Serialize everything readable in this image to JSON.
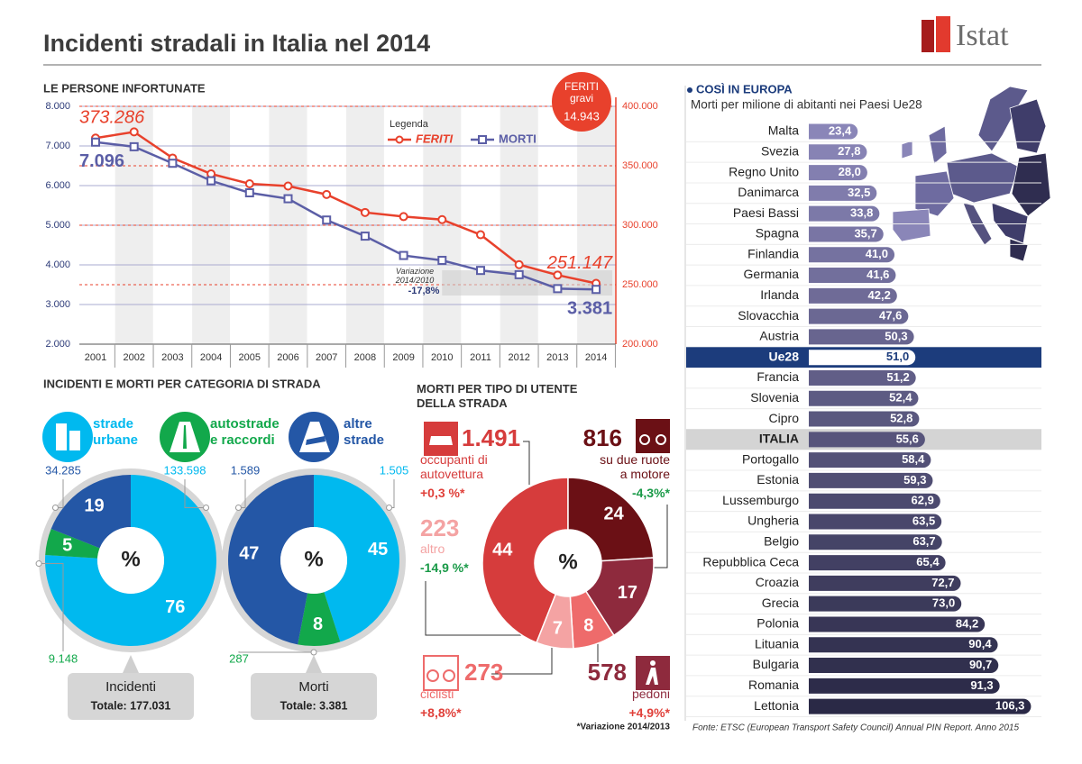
{
  "header": {
    "title": "Incidenti stradali in Italia nel 2014",
    "logo": "Istat"
  },
  "chart_data": [
    {
      "type": "line",
      "title": "LE PERSONE INFORTUNATE",
      "legend_title": "Legenda",
      "categories": [
        "2001",
        "2002",
        "2003",
        "2004",
        "2005",
        "2006",
        "2007",
        "2008",
        "2009",
        "2010",
        "2011",
        "2012",
        "2013",
        "2014"
      ],
      "series": [
        {
          "name": "FERITI",
          "color": "#e8412c",
          "axis": "y2",
          "values": [
            373286,
            378492,
            356475,
            343179,
            334858,
            332955,
            325850,
            310745,
            307258,
            304720,
            292019,
            266864,
            258093,
            251147
          ],
          "value_labels": [
            "373.286",
            null,
            null,
            null,
            null,
            null,
            null,
            null,
            null,
            null,
            null,
            null,
            null,
            "251.147"
          ]
        },
        {
          "name": "MORTI",
          "color": "#5b5ea6",
          "values": [
            7096,
            6980,
            6563,
            6122,
            5818,
            5669,
            5131,
            4725,
            4237,
            4114,
            3860,
            3753,
            3401,
            3381
          ],
          "value_labels": [
            "7.096",
            null,
            null,
            null,
            null,
            null,
            null,
            null,
            null,
            null,
            null,
            null,
            null,
            "3.381"
          ]
        }
      ],
      "ylim": [
        2000,
        8000
      ],
      "yticks": [
        {
          "value": 2000,
          "label": "2.000"
        },
        {
          "value": 3000,
          "label": "3.000"
        },
        {
          "value": 4000,
          "label": "4.000"
        },
        {
          "value": 5000,
          "label": "5.000"
        },
        {
          "value": 6000,
          "label": "6.000"
        },
        {
          "value": 7000,
          "label": "7.000"
        },
        {
          "value": 8000,
          "label": "8.000"
        }
      ],
      "y2lim": [
        200000,
        400000
      ],
      "y2ticks": [
        {
          "value": 200000,
          "label": "200.000"
        },
        {
          "value": 250000,
          "label": "250.000"
        },
        {
          "value": 300000,
          "label": "300.000"
        },
        {
          "value": 350000,
          "label": "350.000"
        },
        {
          "value": 400000,
          "label": "400.000"
        }
      ],
      "grid": true,
      "badge": {
        "label": "FERITI\ngravi",
        "value": "14.943"
      },
      "note": {
        "label": "Variazione\n2014/2010",
        "value": "-17,8%"
      }
    },
    {
      "type": "donut",
      "title": "INCIDENTI E MORTI PER CATEGORIA DI STRADA",
      "center_label": "%",
      "categories": [
        "strade\nurbane",
        "autostrade\ne raccordi",
        "altre\nstrade"
      ],
      "colors": [
        "#00b9ef",
        "#12a84b",
        "#2457a6"
      ],
      "series": [
        {
          "name": "Incidenti",
          "total": "Totale: 177.031",
          "values": [
            76,
            5,
            19
          ],
          "counts": [
            133598,
            9148,
            34285
          ],
          "count_labels": [
            "133.598",
            "9.148",
            "34.285"
          ]
        },
        {
          "name": "Morti",
          "total": "Totale: 3.381",
          "values": [
            45,
            8,
            47
          ],
          "counts": [
            1505,
            287,
            1589
          ],
          "count_labels": [
            "1.505",
            "287",
            "1.589"
          ]
        }
      ]
    },
    {
      "type": "donut",
      "title": "MORTI PER TIPO DI UTENTE\nDELLA STRADA",
      "center_label": "%",
      "categories": [
        "occupanti di\nautovettura",
        "su due ruote\na motore",
        "pedoni",
        "ciclisti",
        "altro"
      ],
      "colors": [
        "#d63c3c",
        "#6b1015",
        "#8e2a3d",
        "#ee6b6b",
        "#f4a3a3"
      ],
      "values": [
        44,
        24,
        17,
        8,
        7
      ],
      "counts": [
        1491,
        816,
        578,
        273,
        223
      ],
      "count_labels": [
        "1.491",
        "816",
        "578",
        "273",
        "223"
      ],
      "changes": [
        "+0,3 %*",
        "-4,3%*",
        "+4,9%*",
        "+8,8%*",
        "-14,9 %*"
      ],
      "footnote": "*Variazione 2014/2013"
    },
    {
      "type": "hbar",
      "title": "COSÌ IN EUROPA",
      "subtitle": "Morti per milione di abitanti nei Paesi Ue28",
      "categories": [
        "Malta",
        "Svezia",
        "Regno Unito",
        "Danimarca",
        "Paesi Bassi",
        "Spagna",
        "Finlandia",
        "Germania",
        "Irlanda",
        "Slovacchia",
        "Austria",
        "Ue28",
        "Francia",
        "Slovenia",
        "Cipro",
        "ITALIA",
        "Portogallo",
        "Estonia",
        "Lussemburgo",
        "Ungheria",
        "Belgio",
        "Repubblica Ceca",
        "Croazia",
        "Grecia",
        "Polonia",
        "Lituania",
        "Bulgaria",
        "Romania",
        "Lettonia"
      ],
      "values": [
        23.4,
        27.8,
        28.0,
        32.5,
        33.8,
        35.7,
        41.0,
        41.6,
        42.2,
        47.6,
        50.3,
        51.0,
        51.2,
        52.4,
        52.8,
        55.6,
        58.4,
        59.3,
        62.9,
        63.5,
        63.7,
        65.4,
        72.7,
        73.0,
        84.2,
        90.4,
        90.7,
        91.3,
        106.3
      ],
      "value_labels": [
        "23,4",
        "27,8",
        "28,0",
        "32,5",
        "33,8",
        "35,7",
        "41,0",
        "41,6",
        "42,2",
        "47,6",
        "50,3",
        "51,0",
        "51,2",
        "52,4",
        "52,8",
        "55,6",
        "58,4",
        "59,3",
        "62,9",
        "63,5",
        "63,7",
        "65,4",
        "72,7",
        "73,0",
        "84,2",
        "90,4",
        "90,7",
        "91,3",
        "106,3"
      ],
      "xlim": [
        0,
        110
      ],
      "color_range": [
        "#8a86b8",
        "#2a2946"
      ],
      "row_colors": [
        null,
        null,
        null,
        null,
        null,
        null,
        null,
        null,
        null,
        null,
        null,
        "#1c3c7c",
        null,
        null,
        null,
        "#d4d4d4",
        null,
        null,
        null,
        null,
        null,
        null,
        null,
        null,
        null,
        null,
        null,
        null,
        null
      ],
      "source": "Fonte: ETSC (European Transport Safety Council) Annual PIN Report. Anno 2015"
    }
  ]
}
